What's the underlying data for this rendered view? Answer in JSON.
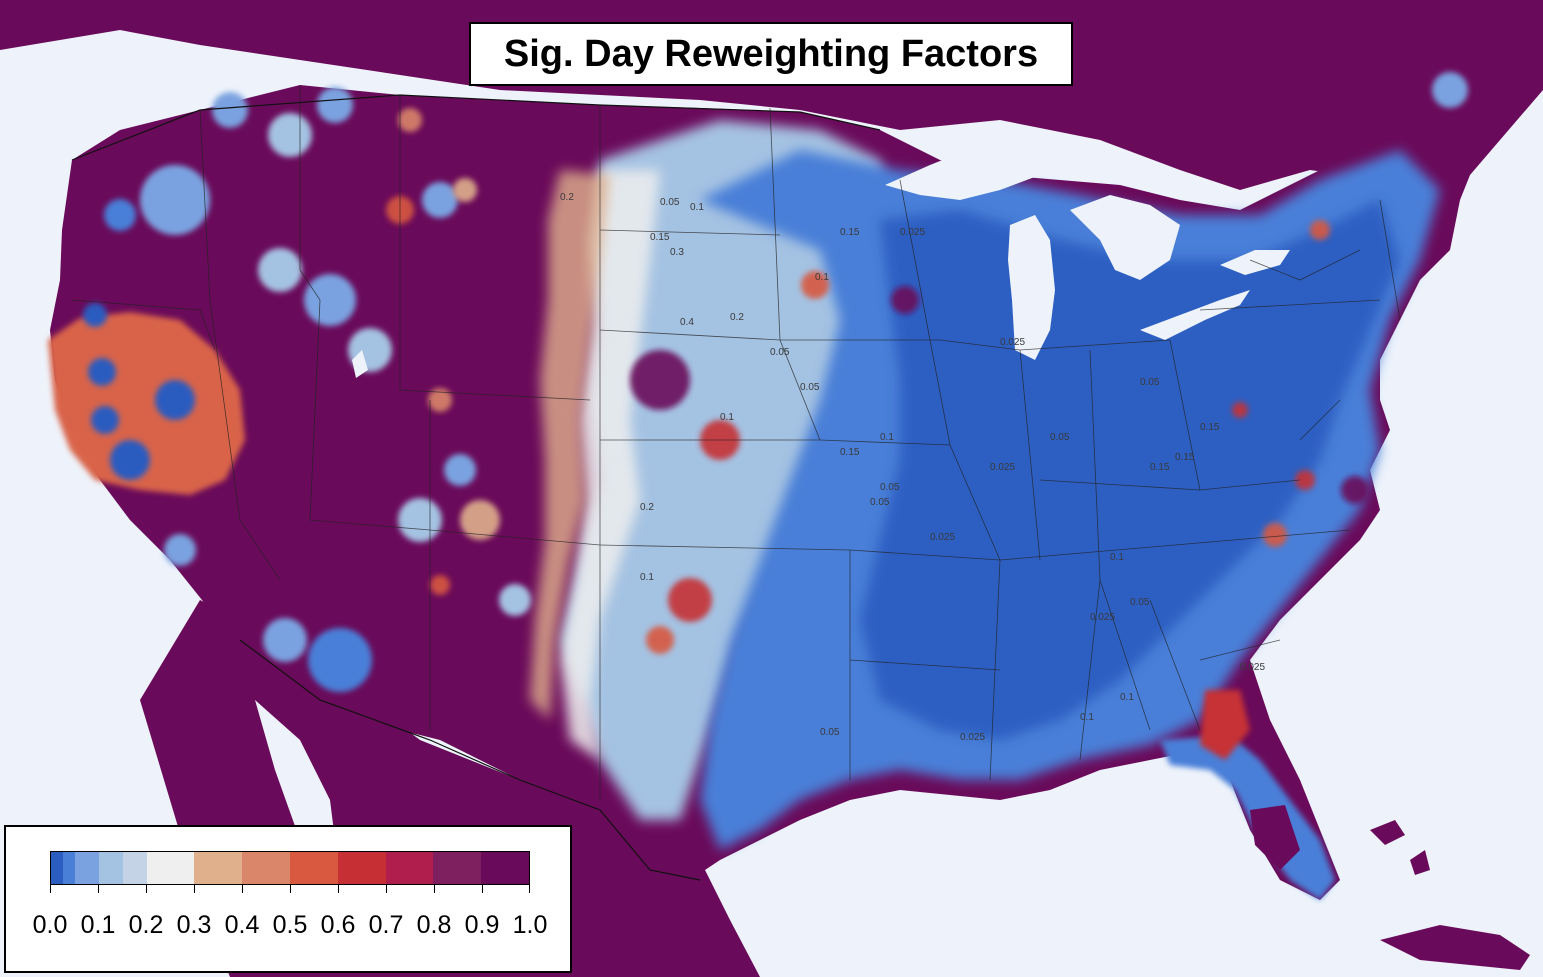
{
  "title": "Sig. Day Reweighting Factors",
  "legend": {
    "ticks": [
      "0.0",
      "0.1",
      "0.2",
      "0.3",
      "0.4",
      "0.5",
      "0.6",
      "0.7",
      "0.8",
      "0.9",
      "1.0"
    ],
    "colors": [
      "#2b5cc0",
      "#4a7fd8",
      "#7aa2e0",
      "#a4c2e2",
      "#c5d3e6",
      "#efefef",
      "#e0b08c",
      "#d9866a",
      "#d85840",
      "#c63035",
      "#b01e4e",
      "#7e2060",
      "#6a0a5a"
    ],
    "boundaries": [
      0.0,
      0.025,
      0.05,
      0.1,
      0.15,
      0.2,
      0.3,
      0.4,
      0.5,
      0.6,
      0.7,
      0.8,
      0.9,
      1.0
    ]
  },
  "contour_labels": [
    "0.05",
    "0.1",
    "0.15",
    "0.2",
    "0.3",
    "0.4",
    "0.025",
    "0.15",
    "0.05",
    "0.1",
    "0.2",
    "0.05",
    "0.025",
    "0.05",
    "0.1",
    "0.025",
    "0.05",
    "0.15",
    "0.1",
    "0.025",
    "0.05",
    "0.1",
    "0.025",
    "0.15",
    "0.05",
    "0.2",
    "0.1",
    "0.15",
    "0.025",
    "0.05",
    "0.1",
    "0.025",
    "0.05",
    "0.15",
    "0.1"
  ],
  "colors": {
    "ocean": "#eef3fb",
    "land_high": "#6a0a5a",
    "border": "#222222"
  }
}
